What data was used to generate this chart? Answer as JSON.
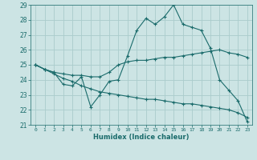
{
  "xlabel": "Humidex (Indice chaleur)",
  "bg_color": "#cce4e4",
  "grid_color": "#aacccc",
  "line_color": "#1a6b6b",
  "xlim": [
    -0.5,
    23.5
  ],
  "ylim": [
    21,
    29
  ],
  "yticks": [
    21,
    22,
    23,
    24,
    25,
    26,
    27,
    28,
    29
  ],
  "xticks": [
    0,
    1,
    2,
    3,
    4,
    5,
    6,
    7,
    8,
    9,
    10,
    11,
    12,
    13,
    14,
    15,
    16,
    17,
    18,
    19,
    20,
    21,
    22,
    23
  ],
  "series1": [
    25.0,
    24.7,
    24.5,
    23.7,
    23.6,
    24.2,
    22.2,
    23.0,
    23.9,
    24.0,
    25.6,
    27.3,
    28.1,
    27.7,
    28.2,
    29.0,
    27.7,
    27.5,
    27.3,
    26.1,
    24.0,
    23.3,
    22.6,
    21.2
  ],
  "series2": [
    25.0,
    24.7,
    24.5,
    24.4,
    24.3,
    24.3,
    24.2,
    24.2,
    24.5,
    25.0,
    25.2,
    25.3,
    25.3,
    25.4,
    25.5,
    25.5,
    25.6,
    25.7,
    25.8,
    25.9,
    26.0,
    25.8,
    25.7,
    25.5
  ],
  "series3": [
    25.0,
    24.7,
    24.4,
    24.1,
    23.9,
    23.6,
    23.4,
    23.2,
    23.1,
    23.0,
    22.9,
    22.8,
    22.7,
    22.7,
    22.6,
    22.5,
    22.4,
    22.4,
    22.3,
    22.2,
    22.1,
    22.0,
    21.8,
    21.5
  ]
}
